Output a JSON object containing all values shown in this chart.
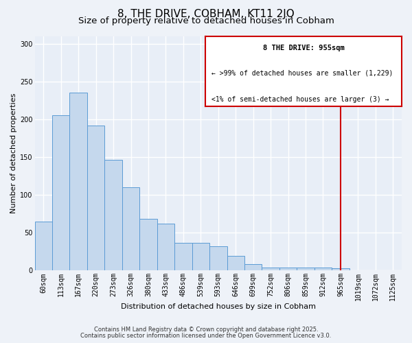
{
  "title": "8, THE DRIVE, COBHAM, KT11 2JQ",
  "subtitle": "Size of property relative to detached houses in Cobham",
  "xlabel": "Distribution of detached houses by size in Cobham",
  "ylabel": "Number of detached properties",
  "bar_labels": [
    "60sqm",
    "113sqm",
    "167sqm",
    "220sqm",
    "273sqm",
    "326sqm",
    "380sqm",
    "433sqm",
    "486sqm",
    "539sqm",
    "593sqm",
    "646sqm",
    "699sqm",
    "752sqm",
    "806sqm",
    "859sqm",
    "912sqm",
    "965sqm",
    "1019sqm",
    "1072sqm",
    "1125sqm"
  ],
  "bar_values": [
    65,
    205,
    235,
    192,
    146,
    110,
    68,
    62,
    37,
    37,
    32,
    19,
    9,
    4,
    4,
    4,
    4,
    3,
    0,
    0,
    0
  ],
  "bar_color": "#c5d8ed",
  "bar_edge_color": "#5b9bd5",
  "vline_idx": 17,
  "vline_color": "#cc0000",
  "legend_text_line1": "8 THE DRIVE: 955sqm",
  "legend_text_line2": "← >99% of detached houses are smaller (1,229)",
  "legend_text_line3": "<1% of semi-detached houses are larger (3) →",
  "legend_box_color": "#cc0000",
  "legend_bg": "#ffffff",
  "ylim": [
    0,
    310
  ],
  "yticks": [
    0,
    50,
    100,
    150,
    200,
    250,
    300
  ],
  "footnote1": "Contains HM Land Registry data © Crown copyright and database right 2025.",
  "footnote2": "Contains public sector information licensed under the Open Government Licence v3.0.",
  "bg_color": "#eef2f8",
  "plot_bg_color": "#e8eef7",
  "grid_color": "#ffffff",
  "title_fontsize": 11,
  "subtitle_fontsize": 9.5,
  "axis_label_fontsize": 8,
  "tick_fontsize": 7,
  "legend_fontsize_title": 7.5,
  "legend_fontsize_body": 7,
  "footnote_fontsize": 6
}
